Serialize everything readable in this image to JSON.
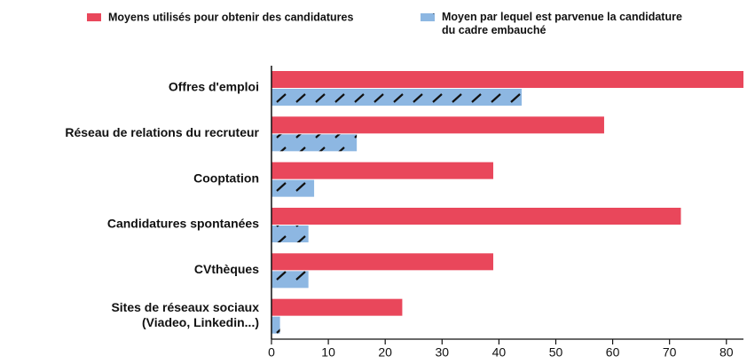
{
  "chart_data": {
    "type": "hbar",
    "categories": [
      "Offres d'emploi",
      "Réseau de relations du recruteur",
      "Cooptation",
      "Candidatures spontanées",
      "CVthèques",
      "Sites de réseaux sociaux\n(Viadeo, Linkedin...)"
    ],
    "series": [
      {
        "name": "Moyens utilisés pour obtenir des candidatures",
        "color": "#e9475b",
        "values": [
          83,
          58.5,
          39,
          72,
          39,
          23
        ]
      },
      {
        "name": "Moyen par lequel est parvenue la candidature\ndu cadre embauché",
        "color": "#8db7e2",
        "hatch": true,
        "values": [
          44,
          15,
          7.5,
          6.5,
          6.5,
          1.5
        ]
      }
    ],
    "xlim": [
      0,
      83
    ],
    "xticks": [
      0,
      10,
      20,
      30,
      40,
      50,
      60,
      70,
      80
    ]
  }
}
